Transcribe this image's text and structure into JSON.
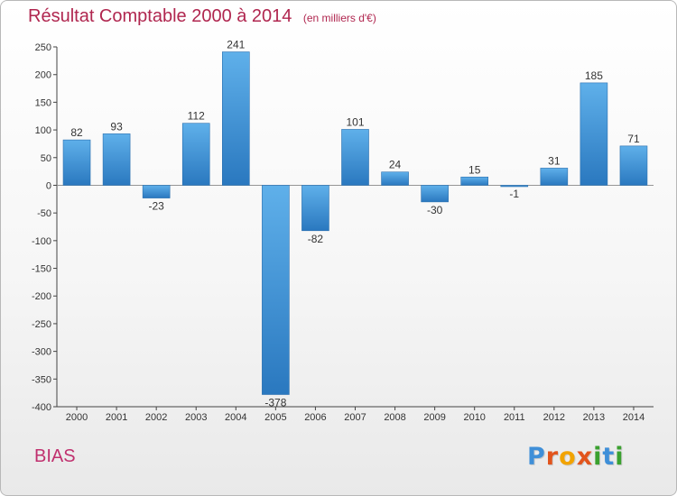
{
  "header": {
    "title": "Résultat Comptable 2000 à 2014",
    "subtitle": "(en milliers d'€)"
  },
  "footer": {
    "commune": "BIAS",
    "logo_letters": [
      {
        "char": "P",
        "color": "#3f8fd8"
      },
      {
        "char": "r",
        "color": "#e2541c"
      },
      {
        "char": "o",
        "color": "#f2a300"
      },
      {
        "char": "x",
        "color": "#e2541c"
      },
      {
        "char": "i",
        "color": "#3aa12f"
      },
      {
        "char": "t",
        "color": "#3f8fd8"
      },
      {
        "char": "i",
        "color": "#3aa12f"
      }
    ]
  },
  "chart_data": {
    "type": "bar",
    "title": "Résultat Comptable 2000 à 2014",
    "ylabel": "en milliers d'€",
    "categories": [
      "2000",
      "2001",
      "2002",
      "2003",
      "2004",
      "2005",
      "2006",
      "2007",
      "2008",
      "2009",
      "2010",
      "2011",
      "2012",
      "2013",
      "2014"
    ],
    "values": [
      82,
      93,
      -23,
      112,
      241,
      -378,
      -82,
      101,
      24,
      -30,
      15,
      -1,
      31,
      185,
      71
    ],
    "ylim": [
      -400,
      250
    ],
    "yticks": [
      250,
      200,
      150,
      100,
      50,
      0,
      -50,
      -100,
      -150,
      -200,
      -250,
      -300,
      -350,
      -400
    ],
    "grid": false,
    "bar_color": "#3a8fd6"
  }
}
